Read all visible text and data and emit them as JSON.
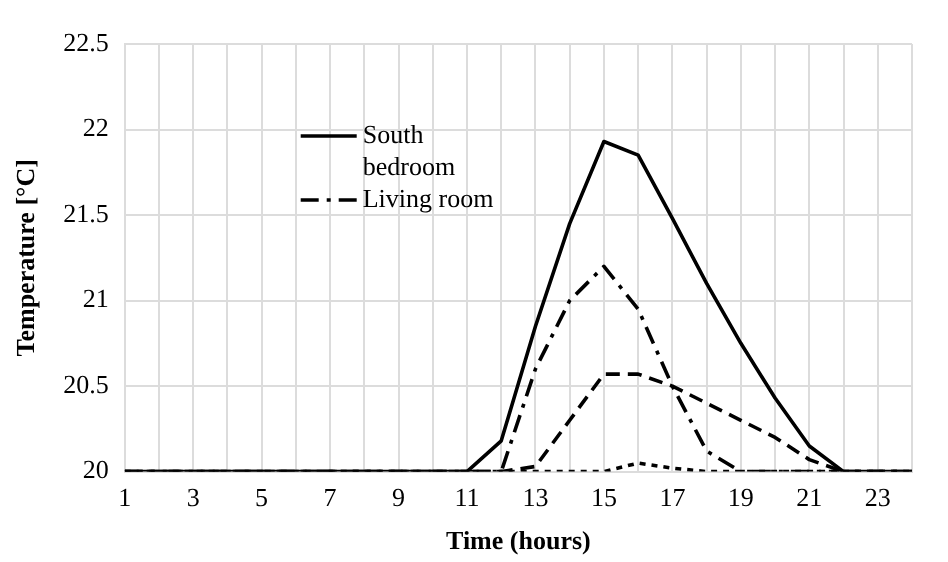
{
  "chart_data": {
    "type": "line",
    "xlabel": "Time (hours)",
    "ylabel": "Temperature [°C]",
    "x": [
      1,
      2,
      3,
      4,
      5,
      6,
      7,
      8,
      9,
      10,
      11,
      12,
      13,
      14,
      15,
      16,
      17,
      18,
      19,
      20,
      21,
      22,
      23,
      24
    ],
    "xlim": [
      1,
      24
    ],
    "xticks": [
      1,
      {
        "value": 2,
        "label": null
      },
      3,
      {
        "value": 4,
        "label": null
      },
      5,
      {
        "value": 6,
        "label": null
      },
      7,
      {
        "value": 8,
        "label": null
      },
      9,
      {
        "value": 10,
        "label": null
      },
      11,
      {
        "value": 12,
        "label": null
      },
      13,
      {
        "value": 14,
        "label": null
      },
      15,
      {
        "value": 16,
        "label": null
      },
      17,
      {
        "value": 18,
        "label": null
      },
      19,
      {
        "value": 20,
        "label": null
      },
      21,
      {
        "value": 22,
        "label": null
      },
      23,
      {
        "value": 24,
        "label": null
      }
    ],
    "series": [
      {
        "name": "South bedroom",
        "color": "#000000",
        "line_style": "solid",
        "values": [
          20,
          20,
          20,
          20,
          20,
          20,
          20,
          20,
          20,
          20,
          20,
          20.18,
          20.85,
          21.45,
          21.93,
          21.85,
          21.48,
          21.1,
          20.75,
          20.43,
          20.15,
          20,
          20,
          20
        ]
      },
      {
        "name": "Living room",
        "color": "#000000",
        "line_style": "dashdot",
        "values": [
          20,
          20,
          20,
          20,
          20,
          20,
          20,
          20,
          20,
          20,
          20,
          20,
          20.6,
          21.0,
          21.2,
          20.95,
          20.5,
          20.12,
          20,
          20,
          20,
          20,
          20,
          20
        ]
      },
      {
        "color": "#000000",
        "line_style": "dashed",
        "values": [
          20,
          20,
          20,
          20,
          20,
          20,
          20,
          20,
          20,
          20,
          20,
          20,
          20.03,
          20.3,
          20.57,
          20.57,
          20.5,
          20.4,
          20.3,
          20.2,
          20.07,
          20,
          20,
          20
        ]
      },
      {
        "color": "#000000",
        "line_style": "dotted",
        "values": [
          20,
          20,
          20,
          20,
          20,
          20,
          20,
          20,
          20,
          20,
          20,
          20,
          20,
          20,
          20,
          20.05,
          20.02,
          20,
          20,
          20,
          20,
          20,
          20,
          20
        ]
      }
    ],
    "ylim": [
      20,
      22.5
    ],
    "yticks": [
      20,
      20.5,
      21,
      21.5,
      22,
      22.5
    ],
    "grid": true,
    "legend": "top left",
    "marker": "none"
  }
}
